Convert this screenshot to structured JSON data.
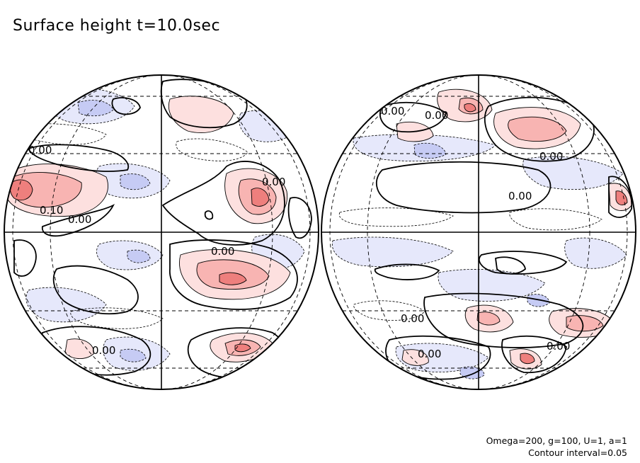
{
  "title": "Surface height t=10.0sec",
  "footer": {
    "params": "Omega=200, g=100, U=1, a=1",
    "contour": "Contour interval=0.05"
  },
  "colors": {
    "positive_fill_light": "#fde0df",
    "positive_fill_mid": "#f8b4b2",
    "positive_fill_strong": "#ee7f7d",
    "negative_fill_light": "#e6e8fb",
    "negative_fill_mid": "#c6cbf4",
    "outline": "#000000"
  },
  "contour_labels": {
    "l1": "0.00",
    "l2": "0.10",
    "l3": "0.00",
    "l4": "0.00",
    "l5": "0.00",
    "l6": "0.00",
    "r1": "0.00",
    "r2": "0.00",
    "r3": "0.00",
    "r4": "0.00",
    "r5": "0.00",
    "r6": "0.00",
    "r7": "0.00"
  }
}
